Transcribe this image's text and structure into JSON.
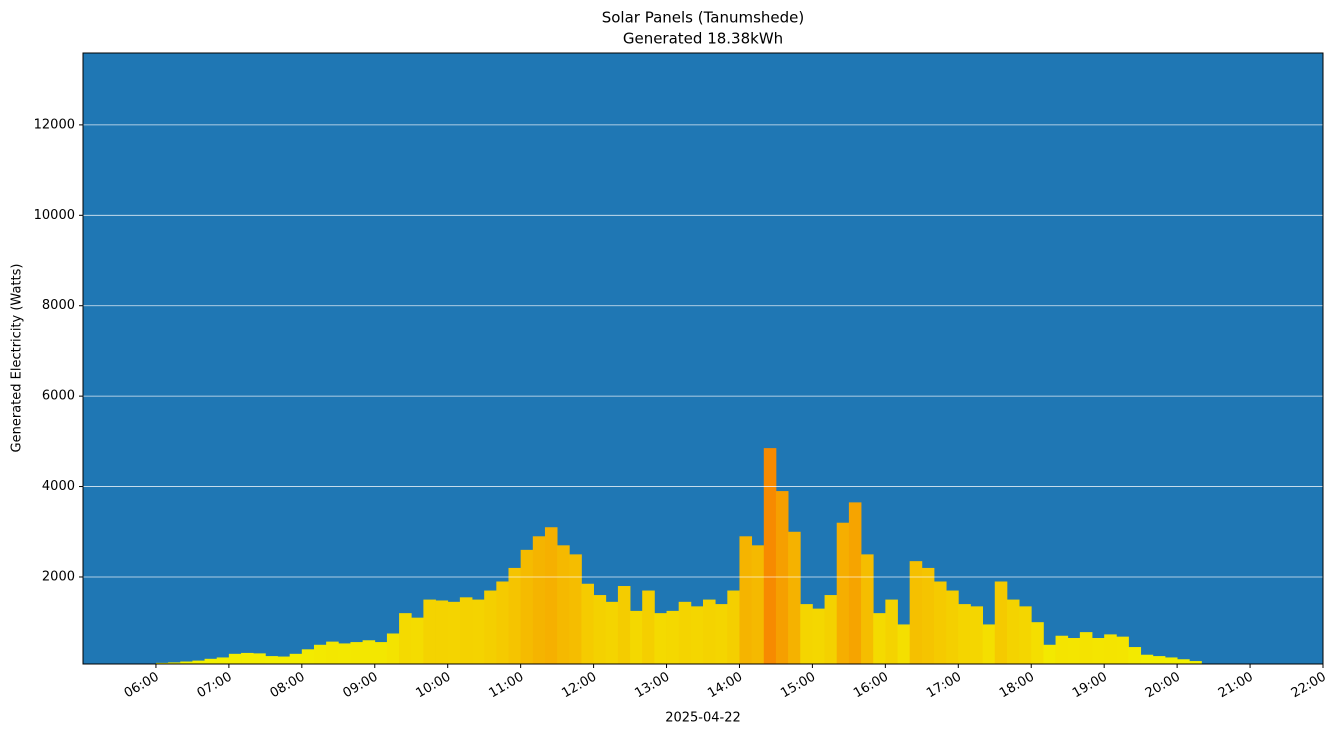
{
  "chart_data": {
    "type": "bar",
    "title": "Solar Panels (Tanumshede)",
    "subtitle": "Generated 18.38kWh",
    "ylabel": "Generated Electricity (Watts)",
    "xlabel": "2025-04-22",
    "background": "#1f77b4",
    "colormap": [
      "#f3f300",
      "#f78a00"
    ],
    "grid": true,
    "xlim": [
      "05:00",
      "22:00"
    ],
    "xticks": [
      "06:00",
      "07:00",
      "08:00",
      "09:00",
      "10:00",
      "11:00",
      "12:00",
      "13:00",
      "14:00",
      "15:00",
      "16:00",
      "17:00",
      "18:00",
      "19:00",
      "20:00",
      "21:00",
      "22:00"
    ],
    "ylim": [
      75,
      13590
    ],
    "yticks": [
      2000,
      4000,
      6000,
      8000,
      10000,
      12000
    ],
    "x": [
      "06:00",
      "06:10",
      "06:20",
      "06:30",
      "06:40",
      "06:50",
      "07:00",
      "07:10",
      "07:20",
      "07:30",
      "07:40",
      "07:50",
      "08:00",
      "08:10",
      "08:20",
      "08:30",
      "08:40",
      "08:50",
      "09:00",
      "09:10",
      "09:20",
      "09:30",
      "09:40",
      "09:50",
      "10:00",
      "10:10",
      "10:20",
      "10:30",
      "10:40",
      "10:50",
      "11:00",
      "11:10",
      "11:20",
      "11:30",
      "11:40",
      "11:50",
      "12:00",
      "12:10",
      "12:20",
      "12:30",
      "12:40",
      "12:50",
      "13:00",
      "13:10",
      "13:20",
      "13:30",
      "13:40",
      "13:50",
      "14:00",
      "14:10",
      "14:20",
      "14:30",
      "14:40",
      "14:50",
      "15:00",
      "15:10",
      "15:20",
      "15:30",
      "15:40",
      "15:50",
      "16:00",
      "16:10",
      "16:20",
      "16:30",
      "16:40",
      "16:50",
      "17:00",
      "17:10",
      "17:20",
      "17:30",
      "17:40",
      "17:50",
      "18:00",
      "18:10",
      "18:20",
      "18:30",
      "18:40",
      "18:50",
      "19:00",
      "19:10",
      "19:20",
      "19:30",
      "19:40",
      "19:50",
      "20:00",
      "20:10",
      "20:20",
      "20:30",
      "20:40",
      "20:50",
      "21:00",
      "21:10",
      "21:20",
      "21:30"
    ],
    "values": [
      100,
      110,
      130,
      150,
      190,
      220,
      300,
      320,
      310,
      250,
      240,
      300,
      400,
      500,
      570,
      530,
      560,
      600,
      560,
      750,
      1200,
      1100,
      1500,
      1480,
      1450,
      1550,
      1500,
      1700,
      1900,
      2200,
      2600,
      2900,
      3100,
      2700,
      2500,
      1850,
      1600,
      1450,
      1800,
      1250,
      1700,
      1200,
      1250,
      1450,
      1350,
      1500,
      1400,
      1700,
      2900,
      2700,
      4850,
      3900,
      3000,
      1400,
      1300,
      1600,
      3200,
      3650,
      2500,
      1200,
      1500,
      950,
      2350,
      2200,
      1900,
      1700,
      1400,
      1350,
      950,
      1900,
      1500,
      1350,
      1000,
      500,
      700,
      650,
      780,
      650,
      730,
      680,
      450,
      280,
      250,
      220,
      180,
      140,
      80,
      50,
      40,
      30,
      30,
      30,
      30,
      30
    ]
  }
}
